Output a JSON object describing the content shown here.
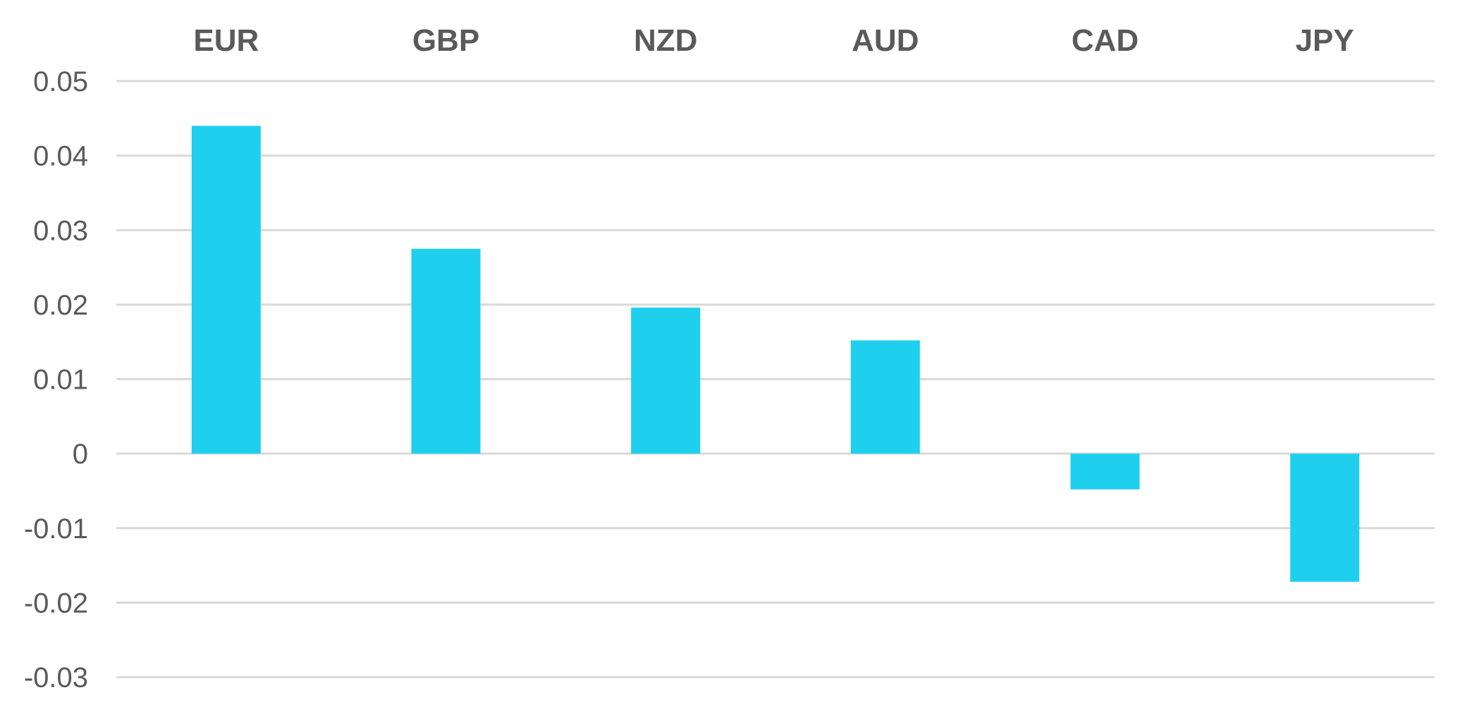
{
  "chart_data": {
    "type": "bar",
    "categories": [
      "EUR",
      "GBP",
      "NZD",
      "AUD",
      "CAD",
      "JPY"
    ],
    "values": [
      0.044,
      0.0275,
      0.0196,
      0.0152,
      -0.0048,
      -0.0172
    ],
    "title": "",
    "xlabel": "",
    "ylabel": "",
    "ylim": [
      -0.03,
      0.05
    ],
    "yticks": [
      0.05,
      0.04,
      0.03,
      0.02,
      0.01,
      0,
      -0.01,
      -0.02,
      -0.03
    ],
    "ytick_labels": [
      "0.05",
      "0.04",
      "0.03",
      "0.02",
      "0.01",
      "0",
      "-0.01",
      "-0.02",
      "-0.03"
    ],
    "category_labels_position": "top",
    "grid": true,
    "bar_color": "#1fd0ee",
    "grid_color": "#d9d9d9",
    "text_color": "#5a5a5a"
  }
}
